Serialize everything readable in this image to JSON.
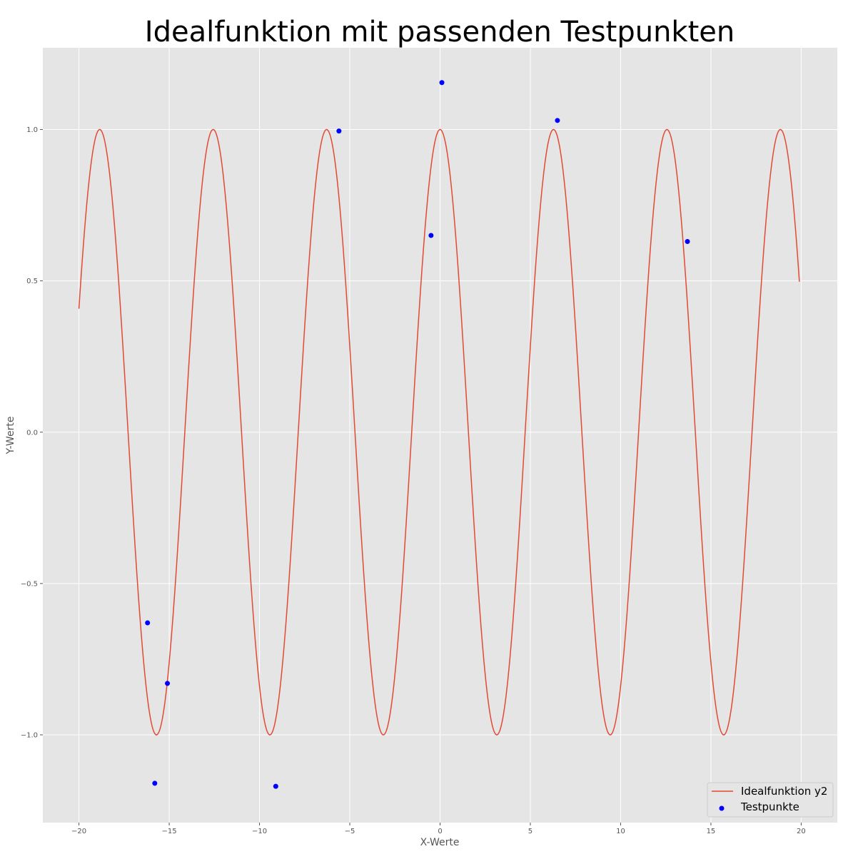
{
  "chart_data": {
    "type": "line",
    "title": "Idealfunktion mit passenden Testpunkten",
    "xlabel": "X-Werte",
    "ylabel": "Y-Werte",
    "xlim": [
      -22,
      22
    ],
    "ylim": [
      -1.29,
      1.27
    ],
    "grid": true,
    "background": "#e5e5e5",
    "grid_color": "#ffffff",
    "legend_placement": "lower right",
    "xticks": [
      -20,
      -15,
      -10,
      -5,
      0,
      5,
      10,
      15,
      20
    ],
    "xtick_labels": [
      "−20",
      "−15",
      "−10",
      "−5",
      "0",
      "5",
      "10",
      "15",
      "20"
    ],
    "yticks": [
      -1.0,
      -0.5,
      0.0,
      0.5,
      1.0
    ],
    "ytick_labels": [
      "−1.0",
      "−0.5",
      "0.0",
      "0.5",
      "1.0"
    ],
    "series": [
      {
        "name": "Idealfunktion y2",
        "kind": "line",
        "color": "#e24a33",
        "function": "cos(x)",
        "x_range": [
          -20,
          19.9
        ]
      },
      {
        "name": "Testpunkte",
        "kind": "scatter",
        "color": "#0000ff",
        "points": [
          {
            "x": -16.2,
            "y": -0.63
          },
          {
            "x": -15.1,
            "y": -0.83
          },
          {
            "x": -15.8,
            "y": -1.16
          },
          {
            "x": -9.1,
            "y": -1.17
          },
          {
            "x": -5.6,
            "y": 0.995
          },
          {
            "x": -0.5,
            "y": 0.65
          },
          {
            "x": 0.1,
            "y": 1.155
          },
          {
            "x": 6.5,
            "y": 1.03
          },
          {
            "x": 13.7,
            "y": 0.63
          }
        ]
      }
    ]
  }
}
